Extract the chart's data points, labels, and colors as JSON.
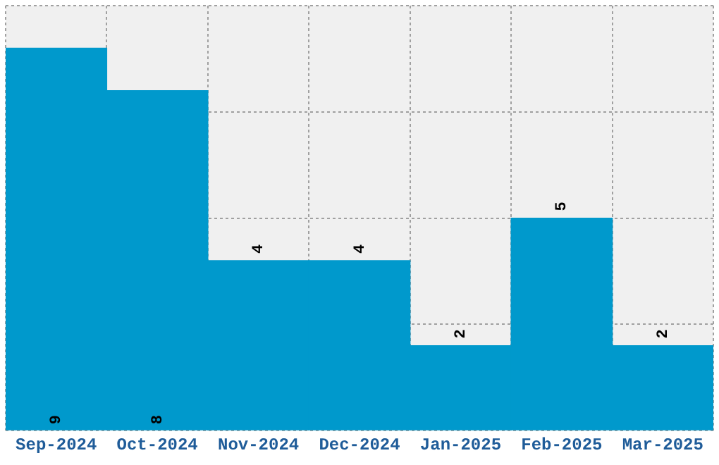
{
  "chart_data": {
    "type": "bar",
    "categories": [
      "Sep-2024",
      "Oct-2024",
      "Nov-2024",
      "Dec-2024",
      "Jan-2025",
      "Feb-2025",
      "Mar-2025"
    ],
    "values": [
      9,
      8,
      4,
      4,
      2,
      5,
      2
    ],
    "color": "#0099cc",
    "data_labels": true,
    "ylim": [
      0,
      10
    ],
    "yticks": [
      {
        "value": 0,
        "label": null
      },
      {
        "value": 2.5,
        "label": null
      },
      {
        "value": 5,
        "label": null
      },
      {
        "value": 7.5,
        "label": null
      },
      {
        "value": 10,
        "label": null
      }
    ],
    "grid": true,
    "legend": false,
    "tick_labels": "x"
  }
}
